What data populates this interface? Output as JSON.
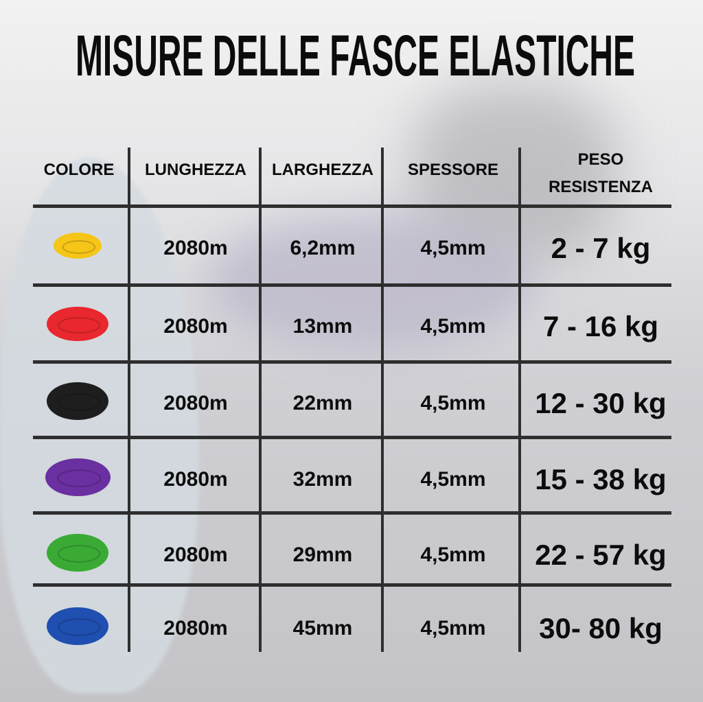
{
  "title": "MISURE DELLE FASCE ELASTICHE",
  "headers": [
    "COLORE",
    "LUNGHEZZA",
    "LARGHEZZA",
    "SPESSORE",
    "PESO",
    "RESISTENZA"
  ],
  "rows": [
    {
      "color": "#f5c518",
      "length": "2080m",
      "width": "6,2mm",
      "thickness": "4,5mm",
      "resistance": "2 - 7 kg"
    },
    {
      "color": "#e8282e",
      "length": "2080m",
      "width": "13mm",
      "thickness": "4,5mm",
      "resistance": "7 - 16 kg"
    },
    {
      "color": "#1e1e1e",
      "length": "2080m",
      "width": "22mm",
      "thickness": "4,5mm",
      "resistance": "12 - 30 kg"
    },
    {
      "color": "#6a2fa0",
      "length": "2080m",
      "width": "32mm",
      "thickness": "4,5mm",
      "resistance": "15 - 38 kg"
    },
    {
      "color": "#3aaa35",
      "length": "2080m",
      "width": "29mm",
      "thickness": "4,5mm",
      "resistance": "22 - 57 kg"
    },
    {
      "color": "#1f4fb0",
      "length": "2080m",
      "width": "45mm",
      "thickness": "4,5mm",
      "resistance": "30- 80 kg"
    }
  ]
}
